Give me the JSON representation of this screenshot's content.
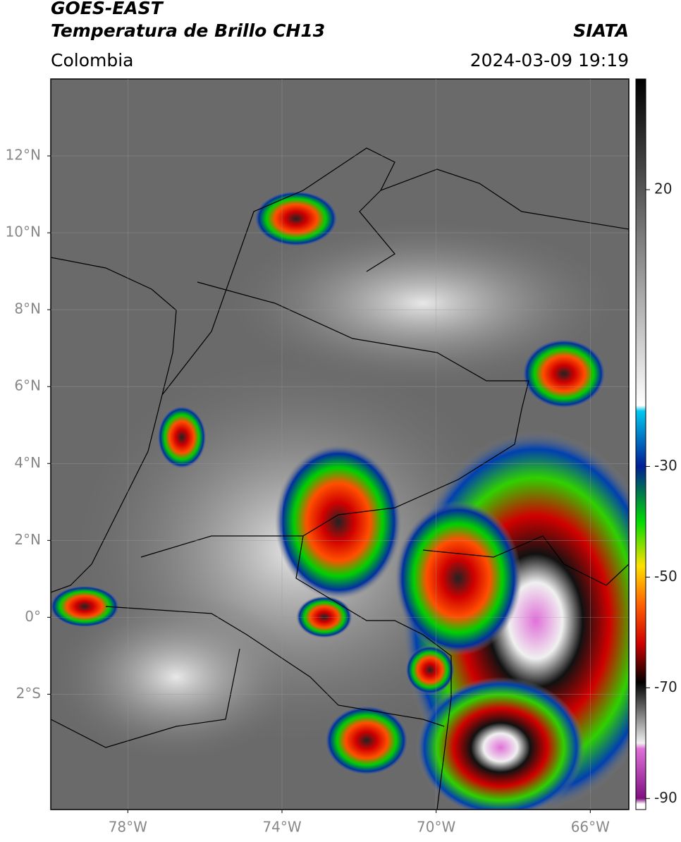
{
  "header": {
    "title": "GOES-EAST",
    "subtitle": "Temperatura de Brillo CH13",
    "source": "SIATA",
    "region": "Colombia",
    "datetime": "2024-03-09 19:19"
  },
  "map": {
    "xlim": [
      -80,
      -65
    ],
    "ylim": [
      -5,
      14
    ],
    "xticks": [
      {
        "value": -78,
        "label": "78°W"
      },
      {
        "value": -74,
        "label": "74°W"
      },
      {
        "value": -70,
        "label": "70°W"
      },
      {
        "value": -66,
        "label": "66°W"
      }
    ],
    "yticks": [
      {
        "value": 12,
        "label": "12°N"
      },
      {
        "value": 10,
        "label": "10°N"
      },
      {
        "value": 8,
        "label": "8°N"
      },
      {
        "value": 6,
        "label": "6°N"
      },
      {
        "value": 4,
        "label": "4°N"
      },
      {
        "value": 2,
        "label": "2°N"
      },
      {
        "value": 0,
        "label": "0°"
      },
      {
        "value": -2,
        "label": "2°S"
      }
    ],
    "grid": true
  },
  "colorbar": {
    "lim": [
      -92,
      40
    ],
    "ticks": [
      20,
      -30,
      -50,
      -70,
      -90
    ],
    "stops": [
      {
        "value": 40,
        "color": "#000000"
      },
      {
        "value": -19,
        "color": "#ffffff"
      },
      {
        "value": -20,
        "color": "#00c8f0"
      },
      {
        "value": -30,
        "color": "#001e96"
      },
      {
        "value": -40,
        "color": "#00dc00"
      },
      {
        "value": -48,
        "color": "#ffe000"
      },
      {
        "value": -55,
        "color": "#ff6000"
      },
      {
        "value": -62,
        "color": "#d00000"
      },
      {
        "value": -69,
        "color": "#000000"
      },
      {
        "value": -80,
        "color": "#f0f0f0"
      },
      {
        "value": -81,
        "color": "#e070d8"
      },
      {
        "value": -90,
        "color": "#801080"
      },
      {
        "value": -91,
        "color": "#ffffff"
      }
    ]
  }
}
